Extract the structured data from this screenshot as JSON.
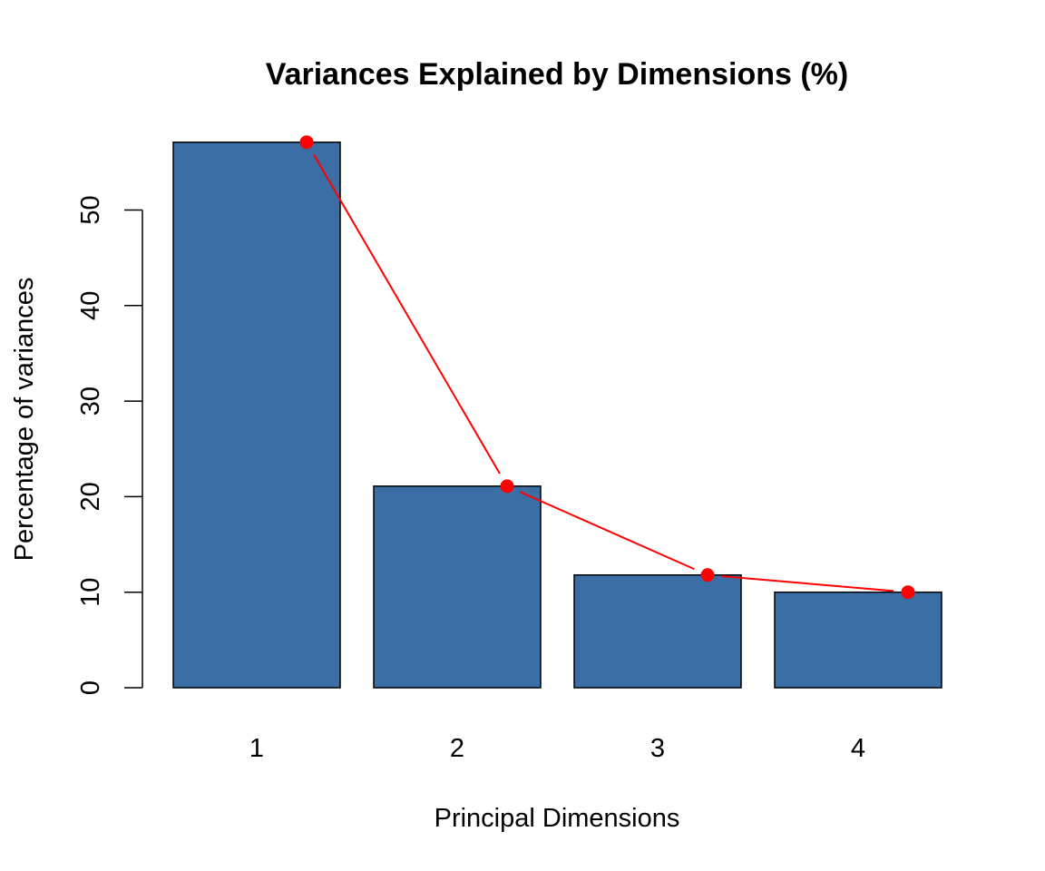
{
  "chart_data": {
    "type": "bar",
    "title": "Variances Explained by Dimensions (%)",
    "xlabel": "Principal Dimensions",
    "ylabel": "Percentage of variances",
    "categories": [
      "1",
      "2",
      "3",
      "4"
    ],
    "values": [
      57.1,
      21.1,
      11.8,
      10.0
    ],
    "ylim": [
      0,
      57.1
    ],
    "yticks": [
      0,
      10,
      20,
      30,
      40,
      50
    ],
    "ytick_labels": [
      "0",
      "10",
      "20",
      "30",
      "40",
      "50"
    ],
    "grid": false,
    "bar_color": "#3A6EA5",
    "bar_border_color": "#000000",
    "line_color": "#FF0000",
    "point_color": "#FF0000"
  }
}
